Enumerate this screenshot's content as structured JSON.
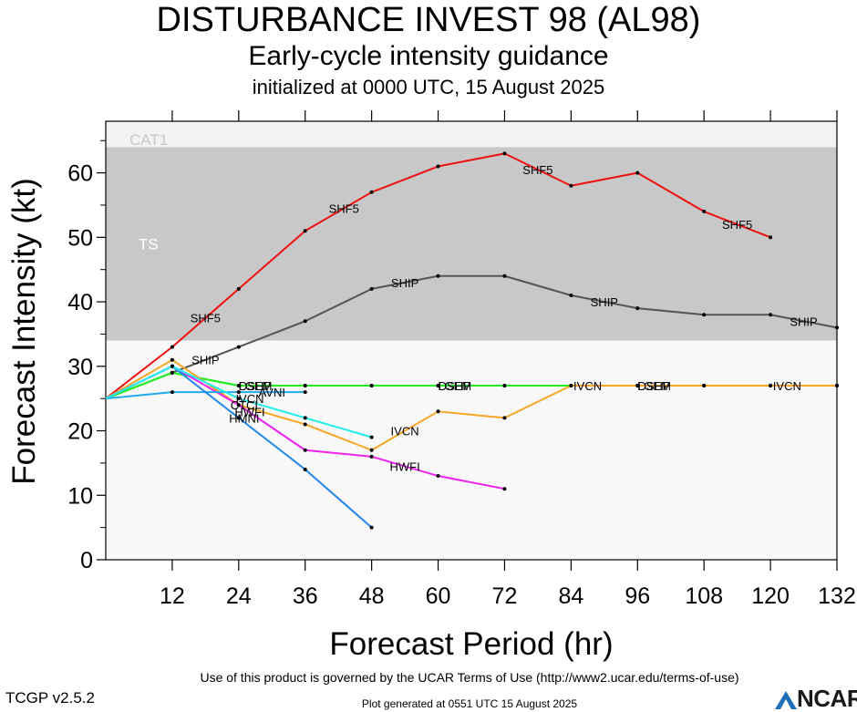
{
  "header": {
    "title": "DISTURBANCE INVEST 98 (AL98)",
    "subtitle": "Early-cycle intensity guidance",
    "init": "initialized at 0000 UTC, 15 August 2025"
  },
  "footer": {
    "terms": "Use of this product is governed by the UCAR Terms of Use (http://www2.ucar.edu/terms-of-use)",
    "version": "TCGP v2.5.2",
    "generated": "Plot generated at 0551 UTC   15 August 2025",
    "logo": "NCAR"
  },
  "chart_data": {
    "type": "line",
    "xlabel": "Forecast Period (hr)",
    "ylabel": "Forecast Intensity (kt)",
    "xlim": [
      0,
      132
    ],
    "ylim": [
      0,
      68
    ],
    "xticks": [
      12,
      24,
      36,
      48,
      60,
      72,
      84,
      96,
      108,
      120,
      132
    ],
    "yticks": [
      0,
      10,
      20,
      30,
      40,
      50,
      60
    ],
    "bands": [
      {
        "name": "TS",
        "from": 34,
        "to": 64,
        "color": "#c8c8c8",
        "label_color": "#ffffff"
      },
      {
        "name": "CAT1",
        "from": 64,
        "to": 68,
        "color": "#f2f2f2",
        "label_color": "#c8c8c8"
      }
    ],
    "background_color": "#f8f8f8",
    "series": [
      {
        "name": "SHIP",
        "color": "#555555",
        "x": [
          0,
          12,
          24,
          36,
          48,
          60,
          72,
          84,
          96,
          108,
          120,
          132
        ],
        "y": [
          25,
          29,
          33,
          37,
          42,
          44,
          44,
          41,
          39,
          38,
          38,
          36
        ]
      },
      {
        "name": "SHF5",
        "color": "#ee1111",
        "x": [
          0,
          12,
          24,
          36,
          48,
          60,
          72,
          84,
          96,
          108,
          120
        ],
        "y": [
          25,
          33,
          42,
          51,
          57,
          61,
          63,
          58,
          60,
          54,
          50
        ]
      },
      {
        "name": "DSHP",
        "color": "#22ee22",
        "x": [
          0,
          12,
          24,
          36,
          48,
          60,
          72,
          84,
          96,
          108,
          120,
          132
        ],
        "y": [
          25,
          29,
          27,
          27,
          27,
          27,
          27,
          27,
          27,
          27,
          27,
          27
        ]
      },
      {
        "name": "LGEM",
        "color": "#22ee22",
        "x": [
          0,
          12,
          24,
          36,
          48,
          60,
          72,
          84,
          96,
          108,
          120,
          132
        ],
        "y": [
          25,
          29,
          27,
          27,
          27,
          27,
          27,
          27,
          27,
          27,
          27,
          27
        ]
      },
      {
        "name": "IVCN",
        "color": "#f5a623",
        "x": [
          0,
          12,
          24,
          36,
          48,
          60,
          72,
          84,
          96,
          108,
          120,
          132
        ],
        "y": [
          25,
          31,
          24,
          21,
          17,
          23,
          22,
          27,
          27,
          27,
          27,
          27
        ]
      },
      {
        "name": "HWFI",
        "color": "#ee22ee",
        "x": [
          0,
          12,
          24,
          36,
          48,
          60,
          72
        ],
        "y": [
          25,
          30,
          24,
          17,
          16,
          13,
          11
        ]
      },
      {
        "name": "AVNI",
        "color": "#22aaee",
        "x": [
          0,
          12,
          24,
          36
        ],
        "y": [
          25,
          26,
          26,
          26
        ]
      },
      {
        "name": "HMNI",
        "color": "#2288ee",
        "x": [
          0,
          12,
          24,
          36,
          48
        ],
        "y": [
          25,
          30,
          22,
          14,
          5
        ]
      },
      {
        "name": "CTCI",
        "color": "#22eeee",
        "x": [
          0,
          12,
          24,
          36,
          48
        ],
        "y": [
          25,
          30,
          25,
          22,
          19
        ]
      }
    ],
    "series_labels": [
      {
        "text": "SHF5",
        "series": "SHF5",
        "x": 18,
        "y": 37.5
      },
      {
        "text": "SHF5",
        "series": "SHF5",
        "x": 43,
        "y": 54.5
      },
      {
        "text": "SHF5",
        "series": "SHF5",
        "x": 78,
        "y": 60.5
      },
      {
        "text": "SHF5",
        "series": "SHF5",
        "x": 114,
        "y": 52
      },
      {
        "text": "SHIP",
        "series": "SHIP",
        "x": 18,
        "y": 31
      },
      {
        "text": "SHIP",
        "series": "SHIP",
        "x": 54,
        "y": 43
      },
      {
        "text": "SHIP",
        "series": "SHIP",
        "x": 90,
        "y": 40
      },
      {
        "text": "SHIP",
        "series": "SHIP",
        "x": 126,
        "y": 37
      },
      {
        "text": "DSHP",
        "series": "DSHP",
        "x": 27,
        "y": 27
      },
      {
        "text": "LGEM",
        "series": "LGEM",
        "x": 27,
        "y": 27
      },
      {
        "text": "DSHP",
        "series": "DSHP",
        "x": 63,
        "y": 27
      },
      {
        "text": "LGEM",
        "series": "LGEM",
        "x": 63,
        "y": 27
      },
      {
        "text": "IVCN",
        "series": "IVCN",
        "x": 87,
        "y": 27
      },
      {
        "text": "DSHP",
        "series": "DSHP",
        "x": 99,
        "y": 27
      },
      {
        "text": "LGEM",
        "series": "LGEM",
        "x": 99,
        "y": 27
      },
      {
        "text": "IVCN",
        "series": "IVCN",
        "x": 123,
        "y": 27
      },
      {
        "text": "IVCN",
        "series": "IVCN",
        "x": 54,
        "y": 20
      },
      {
        "text": "HWFI",
        "series": "HWFI",
        "x": 54,
        "y": 14.5
      },
      {
        "text": "AVNI",
        "series": "AVNI",
        "x": 30,
        "y": 26
      },
      {
        "text": "IVCN",
        "series": "IVCN",
        "x": 26,
        "y": 25
      },
      {
        "text": "CTCI",
        "series": "CTCI",
        "x": 25,
        "y": 24
      },
      {
        "text": "HWFI",
        "series": "HWFI",
        "x": 26,
        "y": 23
      },
      {
        "text": "HMNI",
        "series": "HMNI",
        "x": 25,
        "y": 22
      }
    ]
  }
}
